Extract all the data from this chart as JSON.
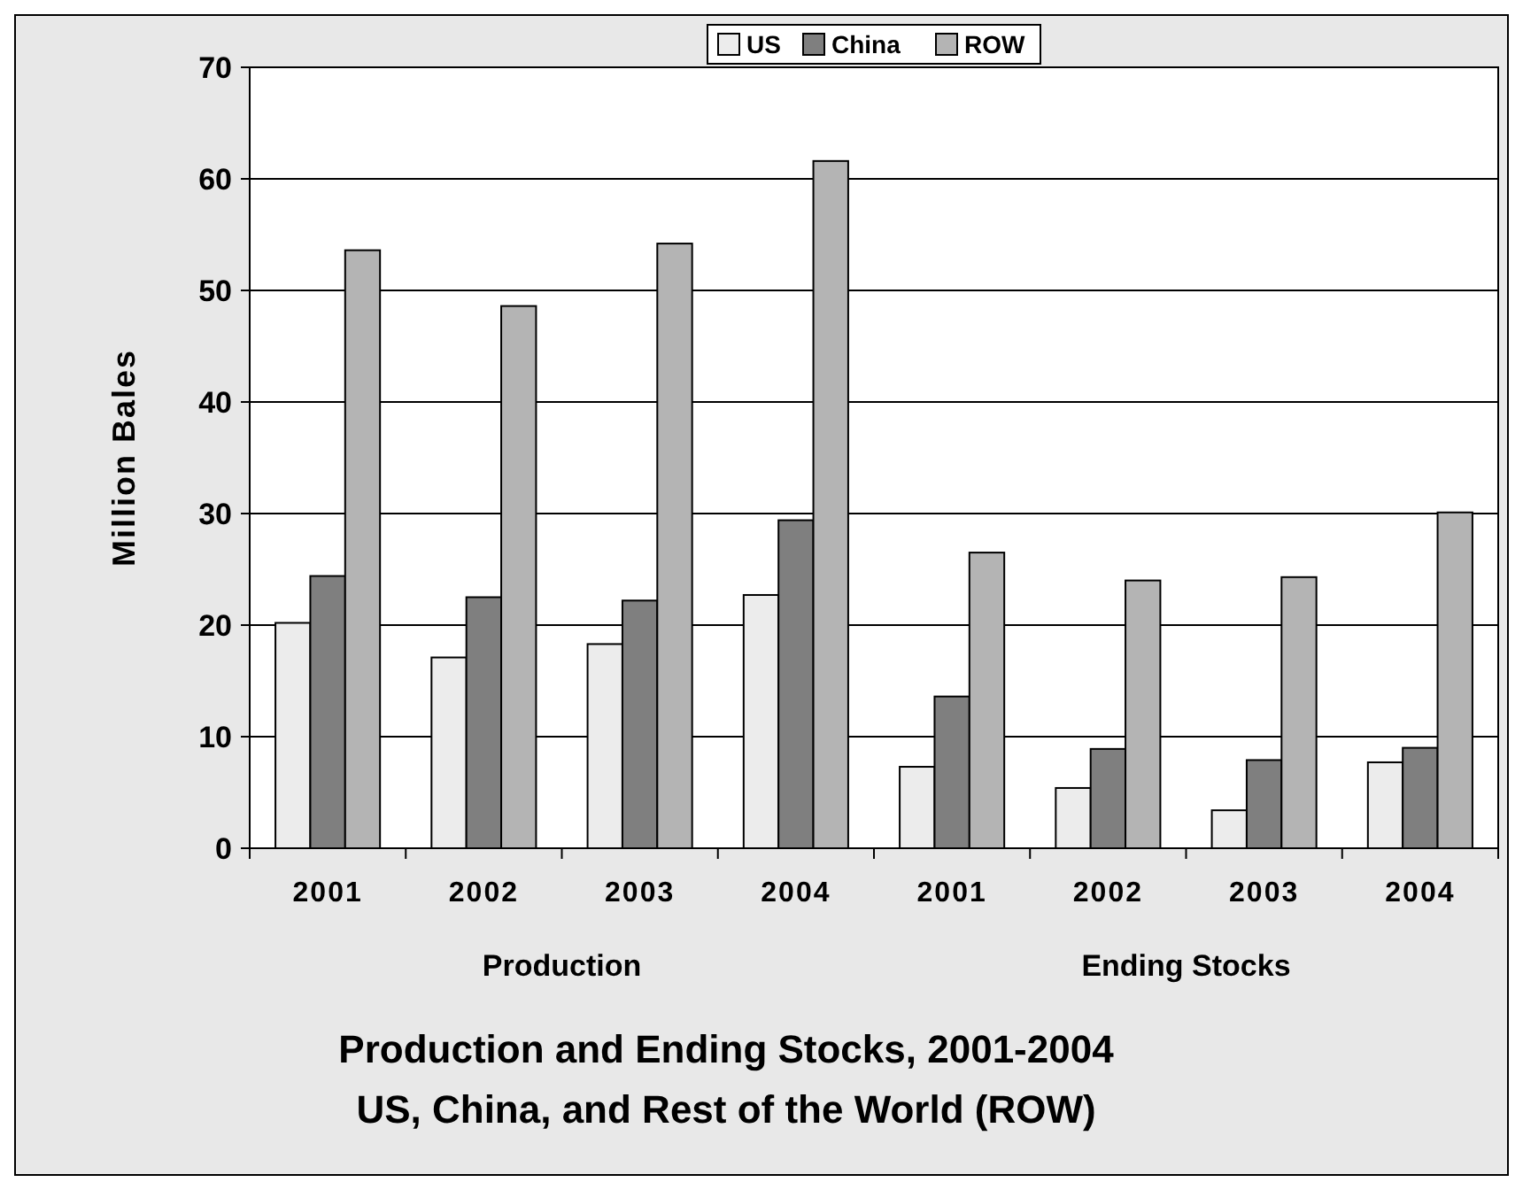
{
  "chart_data": {
    "type": "bar",
    "title": "Production and Ending Stocks, 2001-2004",
    "subtitle": "US, China, and Rest of the World (ROW)",
    "ylabel": "Million Bales",
    "categories": [
      "2001",
      "2002",
      "2003",
      "2004",
      "2001",
      "2002",
      "2003",
      "2004"
    ],
    "series": [
      {
        "name": "US",
        "color": "#ececec",
        "values": [
          20.2,
          17.1,
          18.3,
          22.7,
          7.3,
          5.4,
          3.4,
          7.7
        ]
      },
      {
        "name": "China",
        "color": "#7f7f7f",
        "values": [
          24.4,
          22.5,
          22.2,
          29.4,
          13.6,
          8.9,
          7.9,
          9.0
        ]
      },
      {
        "name": "ROW",
        "color": "#b4b4b4",
        "values": [
          53.6,
          48.6,
          54.2,
          61.6,
          26.5,
          24.0,
          24.3,
          30.1
        ]
      }
    ],
    "annotations": [
      "Production",
      "Ending Stocks"
    ],
    "ylim": [
      0,
      70
    ],
    "yticks": [
      0,
      10,
      20,
      30,
      40,
      50,
      60,
      70
    ],
    "grid": "y",
    "legend": "top"
  }
}
